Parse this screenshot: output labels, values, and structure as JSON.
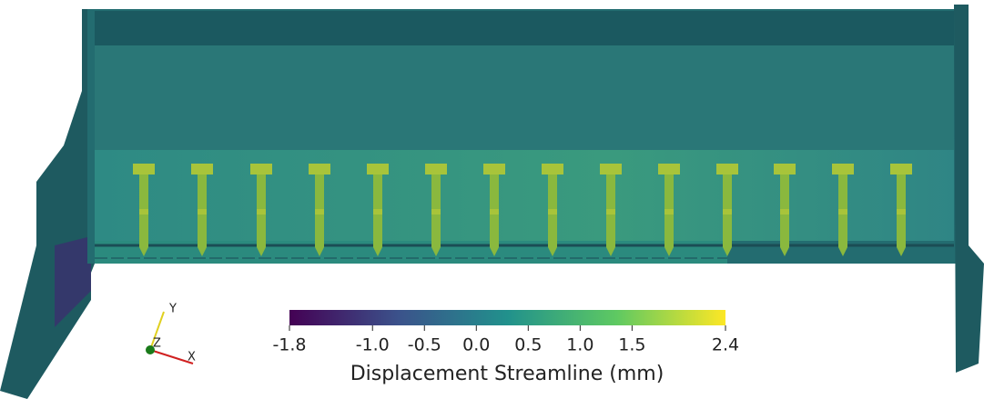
{
  "colorbar": {
    "title": "Displacement Streamline (mm)",
    "ticks": [
      -1.8,
      {
        "value": -1,
        "label": "-1.0"
      },
      -0.5,
      {
        "value": 0,
        "label": "0.0"
      },
      0.5,
      {
        "value": 1,
        "label": "1.0"
      },
      1.5,
      2.4
    ],
    "colormap": [
      "#440154",
      "#3b528b",
      "#21918c",
      "#5ec962",
      "#fde725"
    ]
  },
  "axes_triad": {
    "x": "X",
    "y": "Y",
    "z": "Z"
  }
}
